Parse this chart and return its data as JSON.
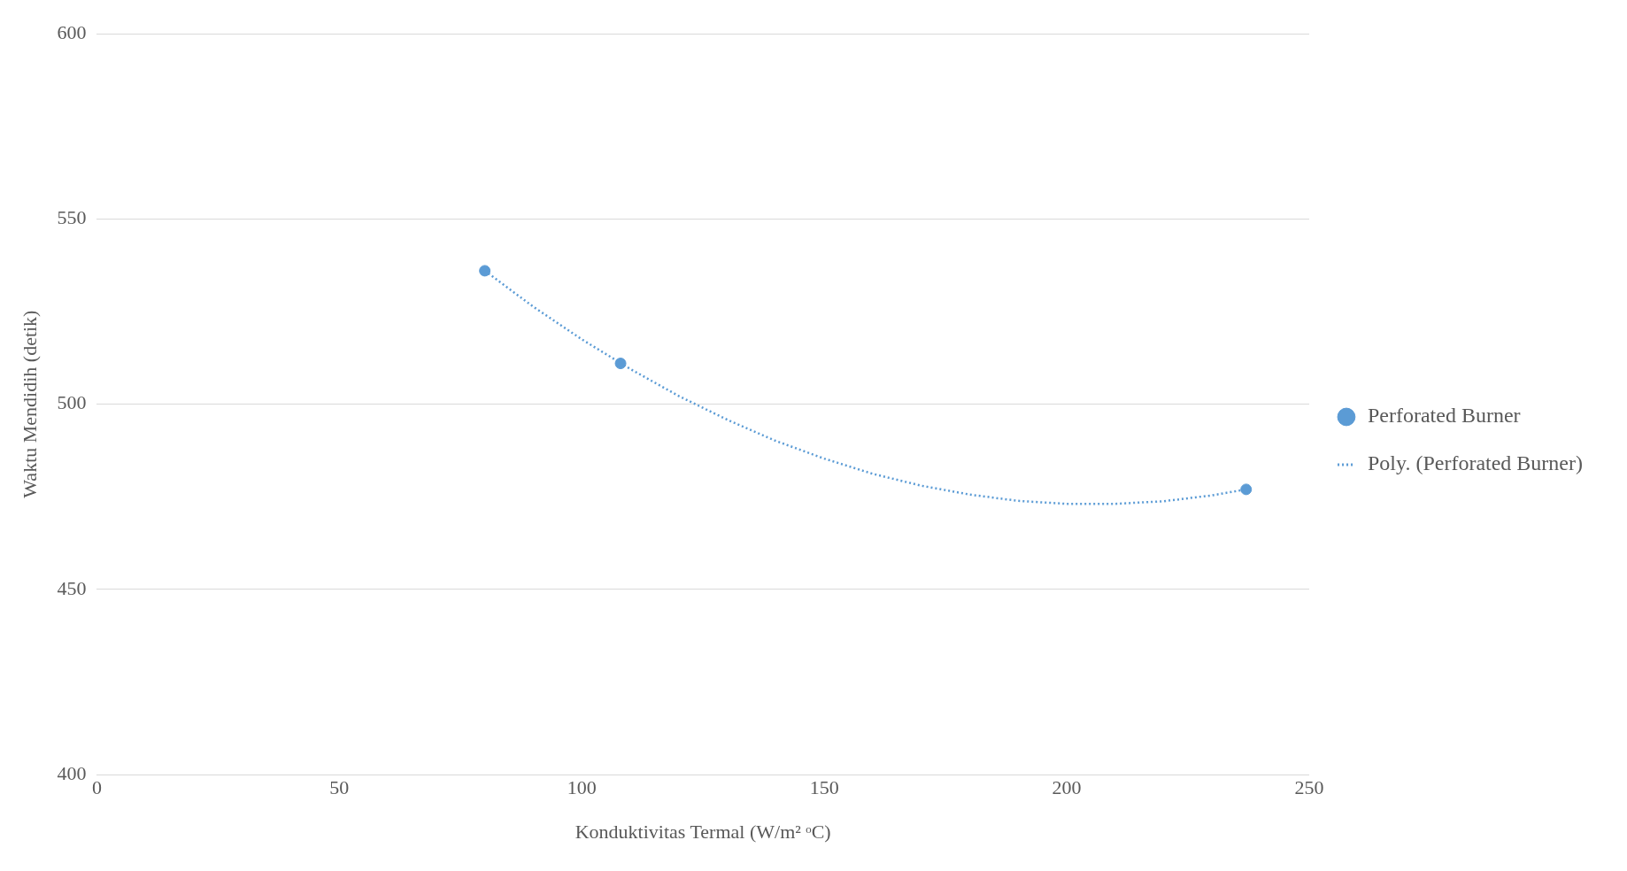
{
  "chart_data": {
    "type": "scatter",
    "xlabel": "Konduktivitas Termal (W/m² ᵒC)",
    "ylabel": "Waktu Mendidih (detik)",
    "xlim": [
      0,
      250
    ],
    "xticks": [
      0,
      50,
      100,
      150,
      200,
      250
    ],
    "ylim": [
      400,
      600
    ],
    "yticks": [
      400,
      450,
      500,
      550,
      600
    ],
    "grid": "y",
    "legend": "right",
    "series": [
      {
        "name": "Perforated Burner",
        "marker": "circle",
        "color": "#5b9bd5",
        "x": [
          80,
          108,
          237
        ],
        "values": [
          536,
          511,
          477
        ]
      },
      {
        "name": "Poly. (Perforated Burner)",
        "type": "line",
        "marker": "none",
        "line_style": "dotted",
        "color": "#5b9bd5",
        "x": [
          80,
          90,
          100,
          110,
          120,
          130,
          140,
          150,
          160,
          170,
          180,
          190,
          200,
          210,
          220,
          230,
          237
        ],
        "values": [
          536,
          526.3,
          517.5,
          509.5,
          502.2,
          495.8,
          490.1,
          485.3,
          481.2,
          478,
          475.6,
          473.9,
          473.1,
          473.1,
          473.8,
          475.4,
          477
        ]
      }
    ]
  }
}
